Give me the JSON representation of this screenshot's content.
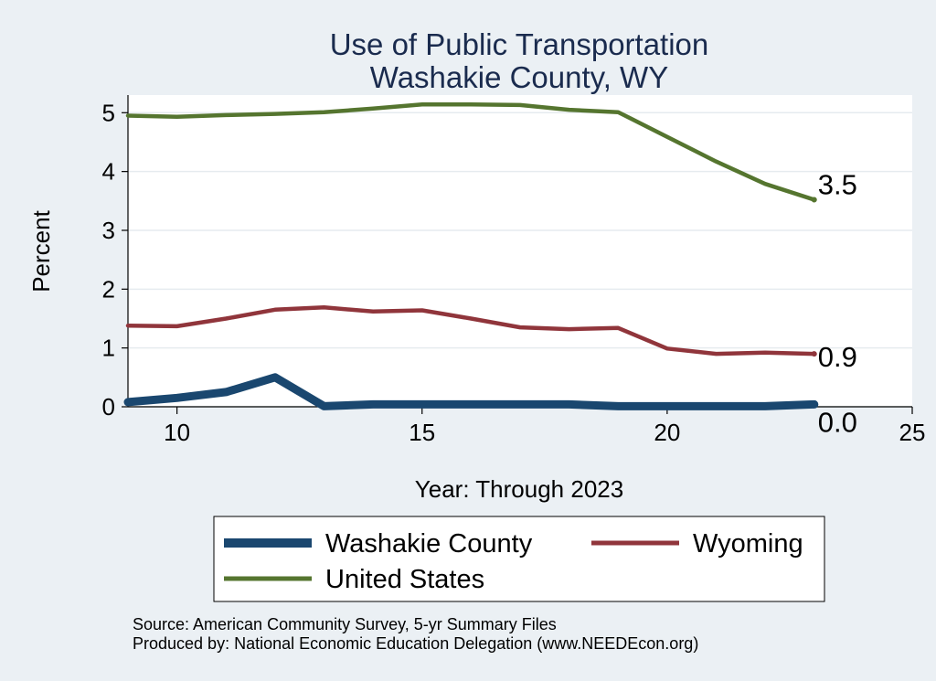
{
  "chart_data": {
    "type": "line",
    "title": [
      "Use of Public Transportation",
      "Washakie County, WY"
    ],
    "xlabel": "Year: Through 2023",
    "ylabel": "Percent",
    "xlim": [
      9,
      25
    ],
    "ylim": [
      0,
      5.3
    ],
    "x_ticks": [
      10,
      15,
      20,
      25
    ],
    "y_ticks": [
      0,
      1,
      2,
      3,
      4,
      5
    ],
    "grid": true,
    "legend_position": "bottom",
    "series": [
      {
        "name": "Washakie County",
        "color": "#1a476f",
        "x": [
          9,
          10,
          11,
          12,
          13,
          14,
          15,
          16,
          17,
          18,
          19,
          20,
          21,
          22,
          23
        ],
        "y": [
          0.08,
          0.15,
          0.25,
          0.5,
          0.01,
          0.04,
          0.04,
          0.04,
          0.04,
          0.04,
          0.01,
          0.01,
          0.01,
          0.01,
          0.04
        ],
        "end_label": "0.0"
      },
      {
        "name": "Wyoming",
        "color": "#90353b",
        "x": [
          9,
          10,
          11,
          12,
          13,
          14,
          15,
          16,
          17,
          18,
          19,
          20,
          21,
          22,
          23
        ],
        "y": [
          1.38,
          1.37,
          1.5,
          1.65,
          1.69,
          1.62,
          1.64,
          1.5,
          1.35,
          1.32,
          1.34,
          0.99,
          0.9,
          0.92,
          0.9
        ],
        "end_label": "0.9"
      },
      {
        "name": "United States",
        "color": "#55752f",
        "x": [
          9,
          10,
          11,
          12,
          13,
          14,
          15,
          16,
          17,
          18,
          19,
          20,
          21,
          22,
          23
        ],
        "y": [
          4.95,
          4.93,
          4.96,
          4.98,
          5.01,
          5.07,
          5.14,
          5.14,
          5.13,
          5.05,
          5.01,
          4.59,
          4.17,
          3.79,
          3.52
        ],
        "end_label": "3.5"
      }
    ]
  },
  "notes": {
    "source": "Source: American Community Survey, 5-yr Summary Files",
    "produced_by": "Produced by: National Economic Education Delegation (www.NEEDEcon.org)"
  }
}
